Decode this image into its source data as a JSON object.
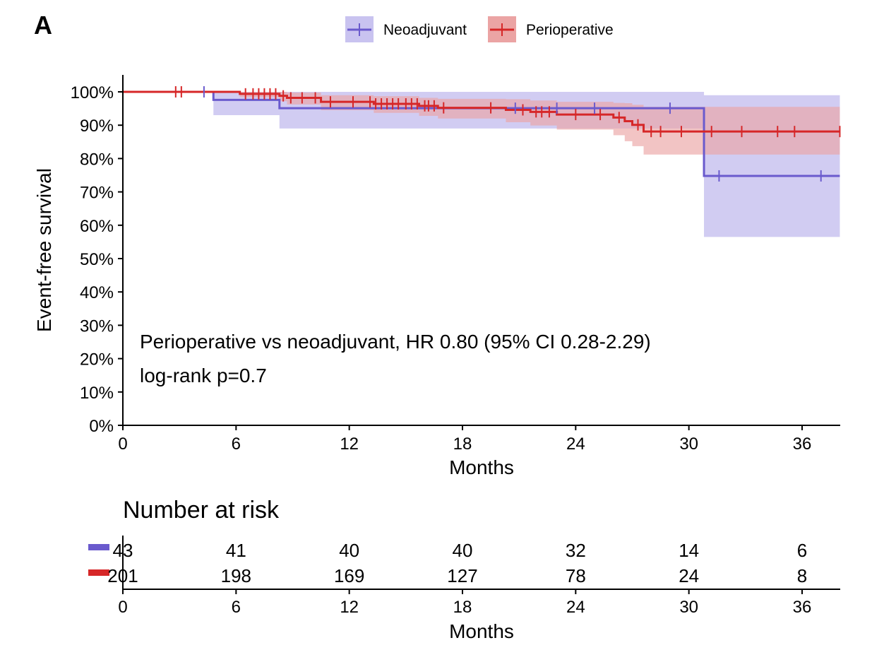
{
  "panel_label": "A",
  "colors": {
    "neo": "#6a5acd",
    "neo_band": "#c9c3f0",
    "peri": "#d62728",
    "peri_band": "#eba4a4"
  },
  "chart_data": {
    "type": "line",
    "subtype": "kaplan-meier",
    "title": "",
    "xlabel": "Months",
    "ylabel": "Event-free survival",
    "xlim": [
      0,
      38
    ],
    "ylim": [
      0,
      100
    ],
    "x_ticks": [
      "0",
      "6",
      "12",
      "18",
      "24",
      "30",
      "36"
    ],
    "x_tick_values": [
      0,
      6,
      12,
      18,
      24,
      30,
      36
    ],
    "y_ticks": [
      "0%",
      "10%",
      "20%",
      "30%",
      "40%",
      "50%",
      "60%",
      "70%",
      "80%",
      "90%",
      "100%"
    ],
    "y_tick_values": [
      0,
      10,
      20,
      30,
      40,
      50,
      60,
      70,
      80,
      90,
      100
    ],
    "legend": {
      "position": "top",
      "entries": [
        "Neoadjuvant",
        "Perioperative"
      ]
    },
    "annotations": [
      "Perioperative vs neoadjuvant, HR 0.80 (95% CI 0.28-2.29)",
      "log-rank p=0.7"
    ],
    "series": [
      {
        "name": "Neoadjuvant",
        "steps": [
          [
            0,
            100
          ],
          [
            4.8,
            97.6
          ],
          [
            8.3,
            95.1
          ],
          [
            30.8,
            74.8
          ],
          [
            38,
            74.8
          ]
        ],
        "ci_lower": [
          [
            0,
            100
          ],
          [
            4.8,
            93
          ],
          [
            8.3,
            89
          ],
          [
            30.8,
            56.5
          ],
          [
            38,
            56.5
          ]
        ],
        "ci_upper": [
          [
            0,
            100
          ],
          [
            4.8,
            100
          ],
          [
            8.3,
            100
          ],
          [
            30.8,
            99
          ],
          [
            38,
            99
          ]
        ],
        "censor_times": [
          4.3,
          20.8,
          23,
          25,
          29,
          31.6,
          37
        ]
      },
      {
        "name": "Perioperative",
        "steps": [
          [
            0,
            100
          ],
          [
            6.2,
            99.4
          ],
          [
            8.3,
            98.8
          ],
          [
            8.7,
            98.2
          ],
          [
            10.5,
            97.0
          ],
          [
            13.3,
            96.4
          ],
          [
            15.7,
            95.8
          ],
          [
            16.7,
            95.2
          ],
          [
            20.3,
            94.6
          ],
          [
            21.6,
            94.0
          ],
          [
            23.0,
            93.2
          ],
          [
            26.0,
            92.3
          ],
          [
            26.6,
            91.2
          ],
          [
            27.0,
            90.1
          ],
          [
            27.6,
            88.1
          ],
          [
            38,
            88.1
          ]
        ],
        "ci_lower": [
          [
            0,
            100
          ],
          [
            6.2,
            98.4
          ],
          [
            8.3,
            97.2
          ],
          [
            8.7,
            96.2
          ],
          [
            10.5,
            94.5
          ],
          [
            13.3,
            93.7
          ],
          [
            15.7,
            92.8
          ],
          [
            16.7,
            92.0
          ],
          [
            20.3,
            90.9
          ],
          [
            21.6,
            89.9
          ],
          [
            23.0,
            88.7
          ],
          [
            26.0,
            87.0
          ],
          [
            26.6,
            85.2
          ],
          [
            27.0,
            83.7
          ],
          [
            27.6,
            81.2
          ],
          [
            38,
            81.2
          ]
        ],
        "ci_upper": [
          [
            0,
            100
          ],
          [
            6.2,
            100
          ],
          [
            8.3,
            100
          ],
          [
            8.7,
            99.8
          ],
          [
            10.5,
            99.0
          ],
          [
            13.3,
            98.7
          ],
          [
            15.7,
            98.2
          ],
          [
            16.7,
            97.9
          ],
          [
            20.3,
            97.8
          ],
          [
            21.6,
            97.4
          ],
          [
            23.0,
            97.0
          ],
          [
            26.0,
            96.7
          ],
          [
            26.6,
            96.6
          ],
          [
            27.0,
            96.1
          ],
          [
            27.6,
            95.5
          ],
          [
            38,
            95.5
          ]
        ],
        "censor_times": [
          2.8,
          3.1,
          6.5,
          6.9,
          7.2,
          7.5,
          7.8,
          8.1,
          8.5,
          8.9,
          9.5,
          10.2,
          11.0,
          12.2,
          13.1,
          13.4,
          13.7,
          14.0,
          14.3,
          14.6,
          15.0,
          15.3,
          15.6,
          16.0,
          16.2,
          16.5,
          17.0,
          19.5,
          21.2,
          21.9,
          22.2,
          22.6,
          24.0,
          25.3,
          26.3,
          27.3,
          28.0,
          28.5,
          29.6,
          31.2,
          32.8,
          34.7,
          35.6,
          38.0
        ]
      }
    ],
    "risk_table": {
      "title": "Number at risk",
      "xlabel": "Months",
      "times": [
        0,
        6,
        12,
        18,
        24,
        30,
        36
      ],
      "rows": [
        {
          "name": "Neoadjuvant",
          "counts": [
            "43",
            "41",
            "40",
            "40",
            "32",
            "14",
            "6"
          ]
        },
        {
          "name": "Perioperative",
          "counts": [
            "201",
            "198",
            "169",
            "127",
            "78",
            "24",
            "8"
          ]
        }
      ]
    }
  }
}
